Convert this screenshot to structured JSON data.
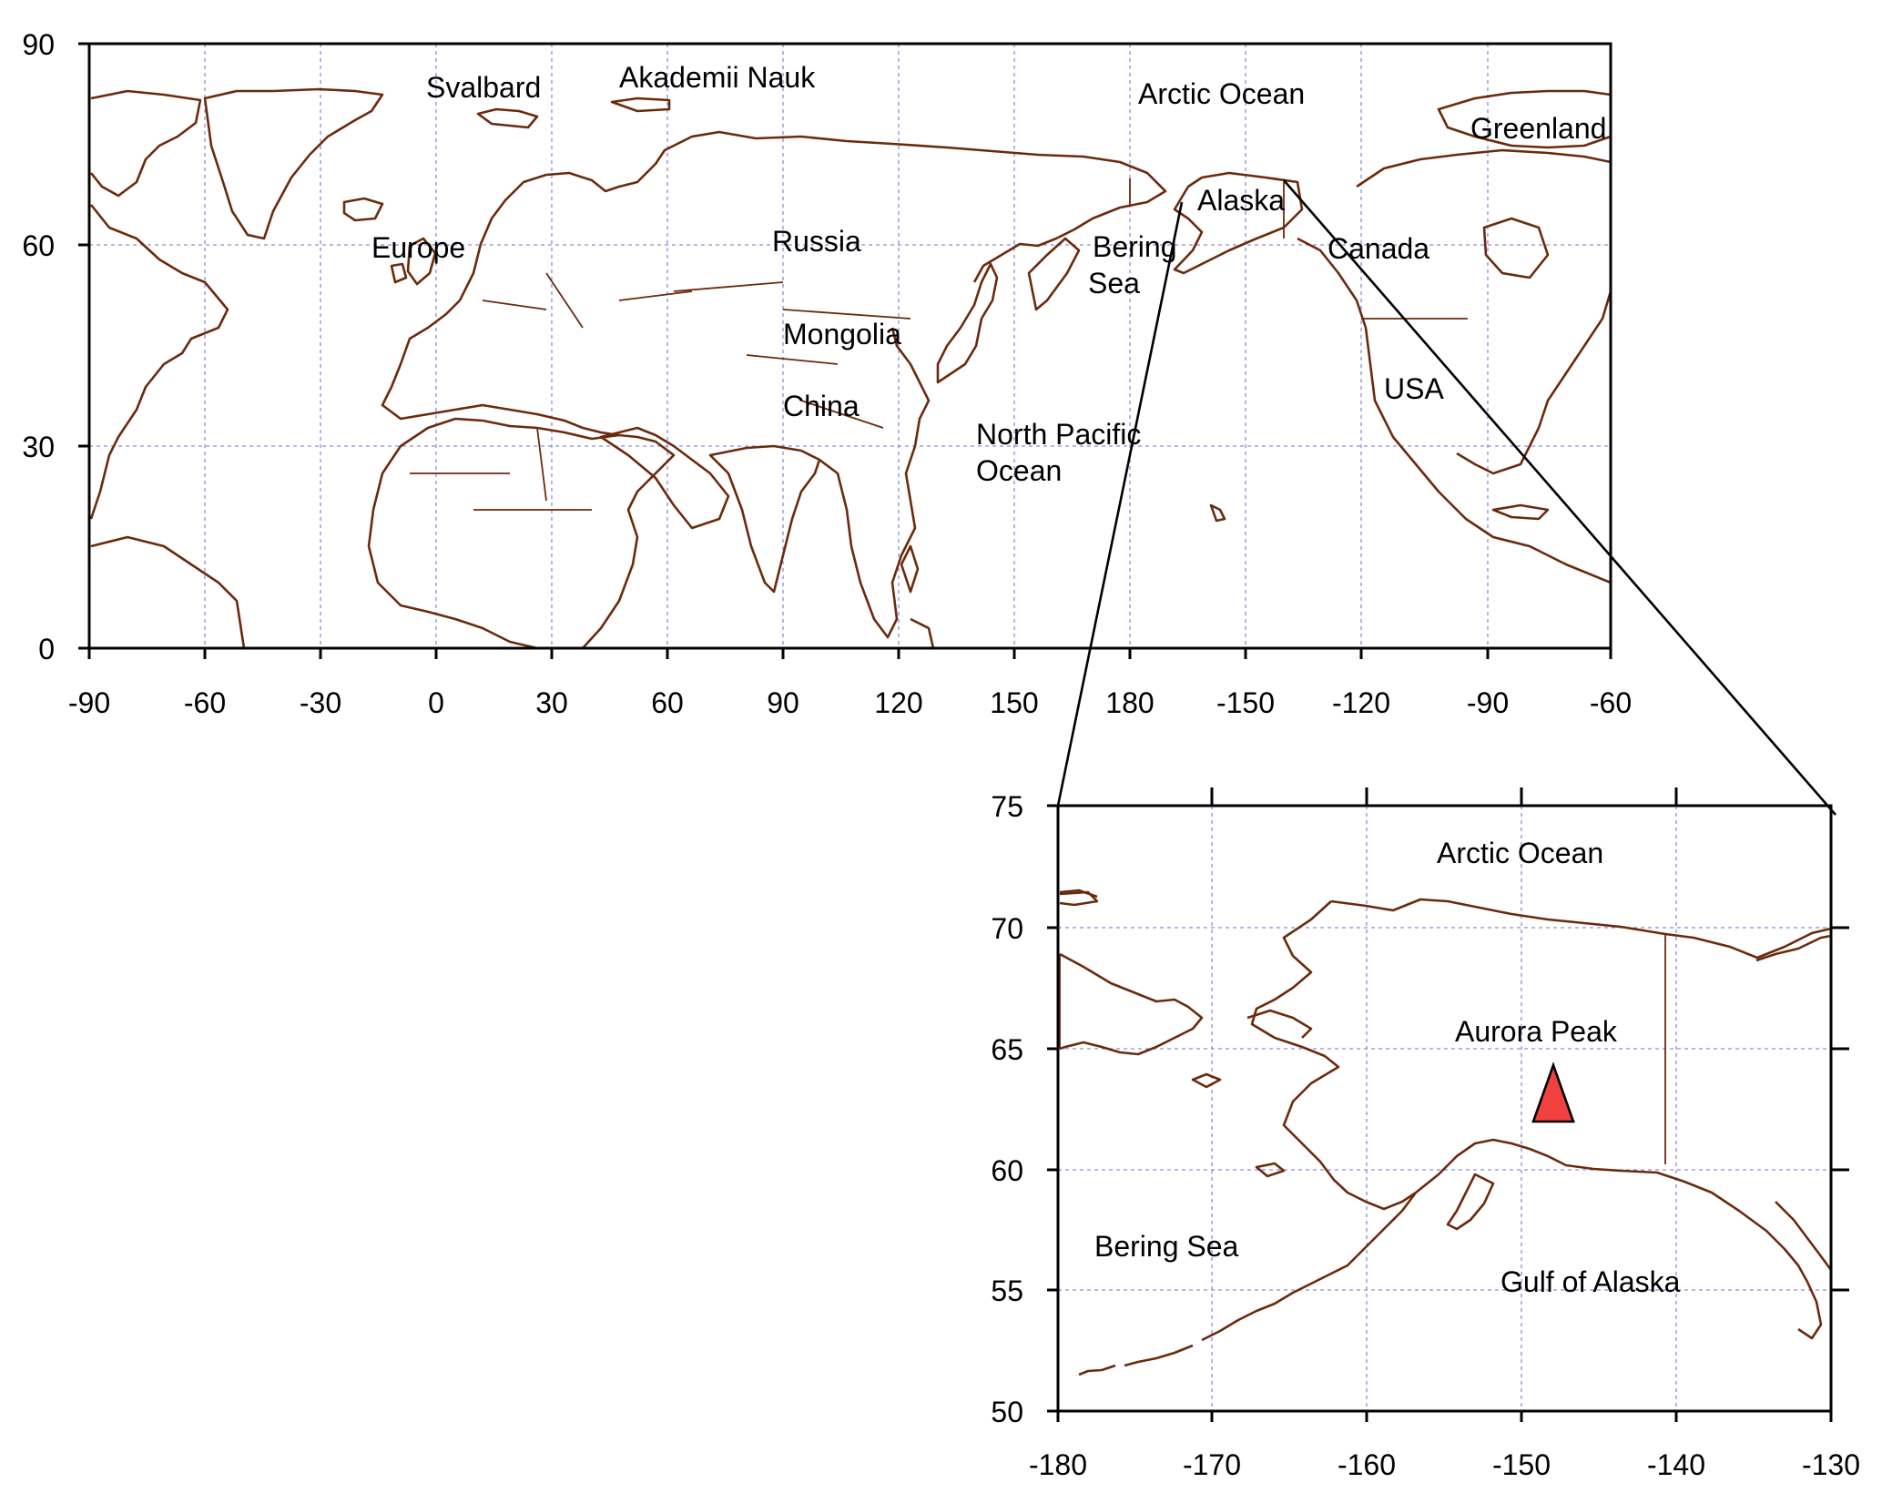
{
  "colors": {
    "coastline": "#6b2a0c",
    "gridline": "#8c8cdc",
    "marker_fill": "#f04040",
    "axes": "#000000"
  },
  "world_map": {
    "x_tick_labels": [
      "-90",
      "-60",
      "-30",
      "0",
      "30",
      "60",
      "90",
      "120",
      "150",
      "180",
      "-150",
      "-120",
      "-90",
      "-60"
    ],
    "y_tick_labels": [
      "90",
      "60",
      "30",
      "0"
    ],
    "labels": {
      "svalbard": "Svalbard",
      "akademii_nauk": "Akademii Nauk",
      "arctic_ocean": "Arctic Ocean",
      "greenland": "Greenland",
      "europe": "Europe",
      "russia": "Russia",
      "alaska": "Alaska",
      "bering": "Bering",
      "sea": "Sea",
      "canada": "Canada",
      "mongolia": "Mongolia",
      "usa": "USA",
      "china": "China",
      "north_pacific": "North Pacific",
      "ocean": "Ocean"
    }
  },
  "inset_map": {
    "x_tick_labels": [
      "-180",
      "-170",
      "-160",
      "-150",
      "-140",
      "-130"
    ],
    "y_tick_labels": [
      "75",
      "70",
      "65",
      "60",
      "55",
      "50"
    ],
    "labels": {
      "arctic_ocean": "Arctic Ocean",
      "aurora_peak": "Aurora Peak",
      "bering_sea": "Bering Sea",
      "gulf_of_alaska": "Gulf of Alaska"
    },
    "marker": {
      "name": "Aurora Peak",
      "shape": "triangle",
      "lon": -147.8,
      "lat": 63.2
    }
  }
}
